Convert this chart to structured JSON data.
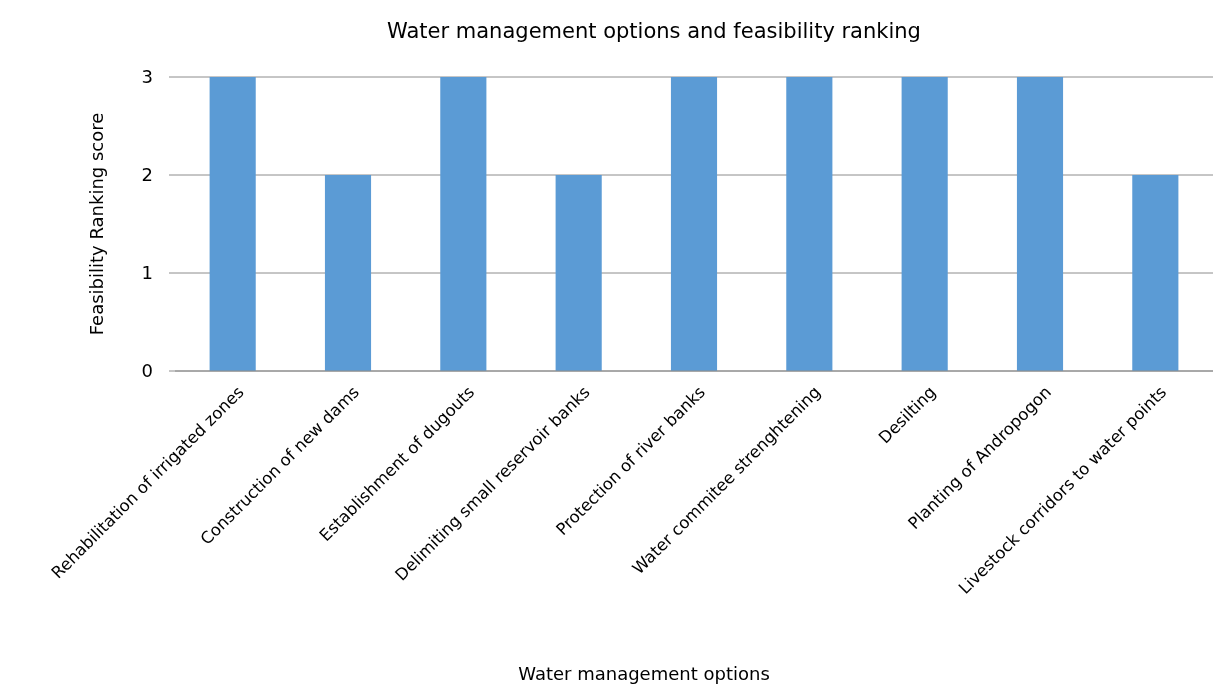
{
  "chart_data": {
    "type": "bar",
    "title": "Water management options and feasibility ranking",
    "xlabel": "Water management options",
    "ylabel": "Feasibility Ranking score",
    "categories": [
      "Rehabilitation of irrigated zones",
      "Construction of new dams",
      "Establishment of dugouts",
      "Delimiting small reservoir banks",
      "Protection of river banks",
      "Water commitee strenghtening",
      "Desilting",
      "Planting of Andropogon",
      "Livestock corridors to water points"
    ],
    "values": [
      3,
      2,
      3,
      2,
      3,
      3,
      3,
      3,
      2
    ],
    "color": "#5b9bd5",
    "ylim": [
      0,
      3
    ],
    "yticks": [
      0,
      1,
      2,
      3
    ],
    "grid": "y"
  }
}
